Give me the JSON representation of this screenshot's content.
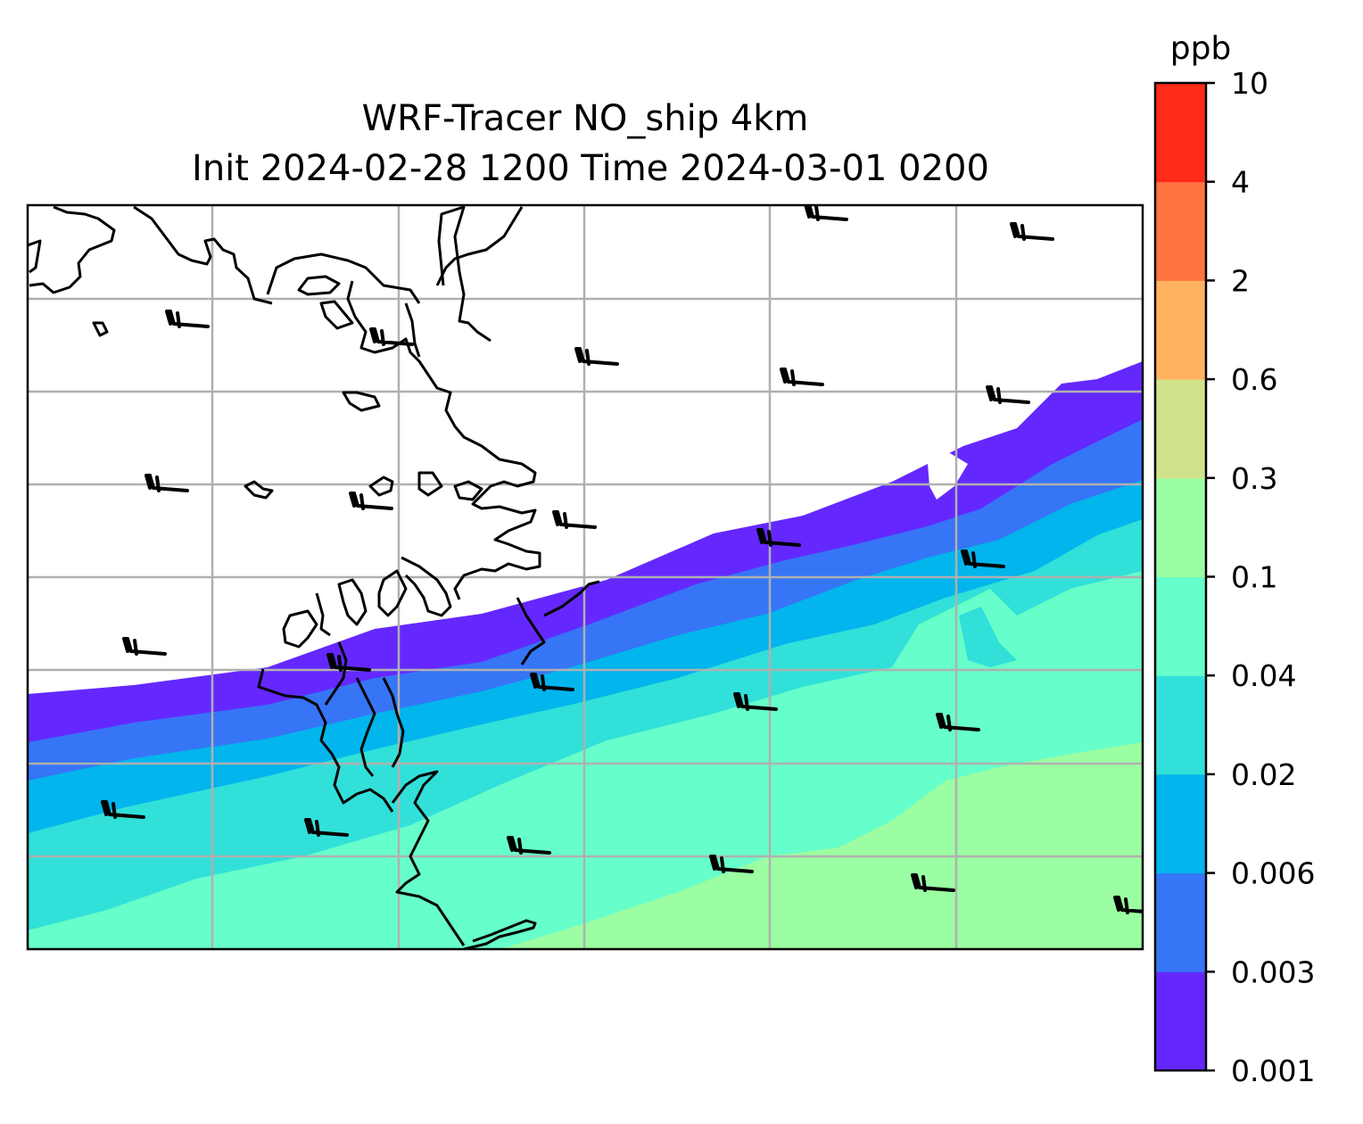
{
  "map": {
    "title_line1": "WRF-Tracer NO_ship 4km",
    "title_line2": "Init 2024-02-28 1200 Time 2024-03-01 0200",
    "grid_color": "#b0b0b0",
    "coastline_color": "#000000"
  },
  "colorbar": {
    "unit": "ppb",
    "ticks": [
      "10",
      "4",
      "2",
      "0.6",
      "0.3",
      "0.1",
      "0.04",
      "0.02",
      "0.006",
      "0.003",
      "0.001"
    ],
    "colors": [
      "#6428fe",
      "#3675f6",
      "#02b5ed",
      "#31e0d9",
      "#66feca",
      "#9bfea2",
      "#d1e38a",
      "#ffb360",
      "#fe7440",
      "#ff2a18"
    ]
  }
}
